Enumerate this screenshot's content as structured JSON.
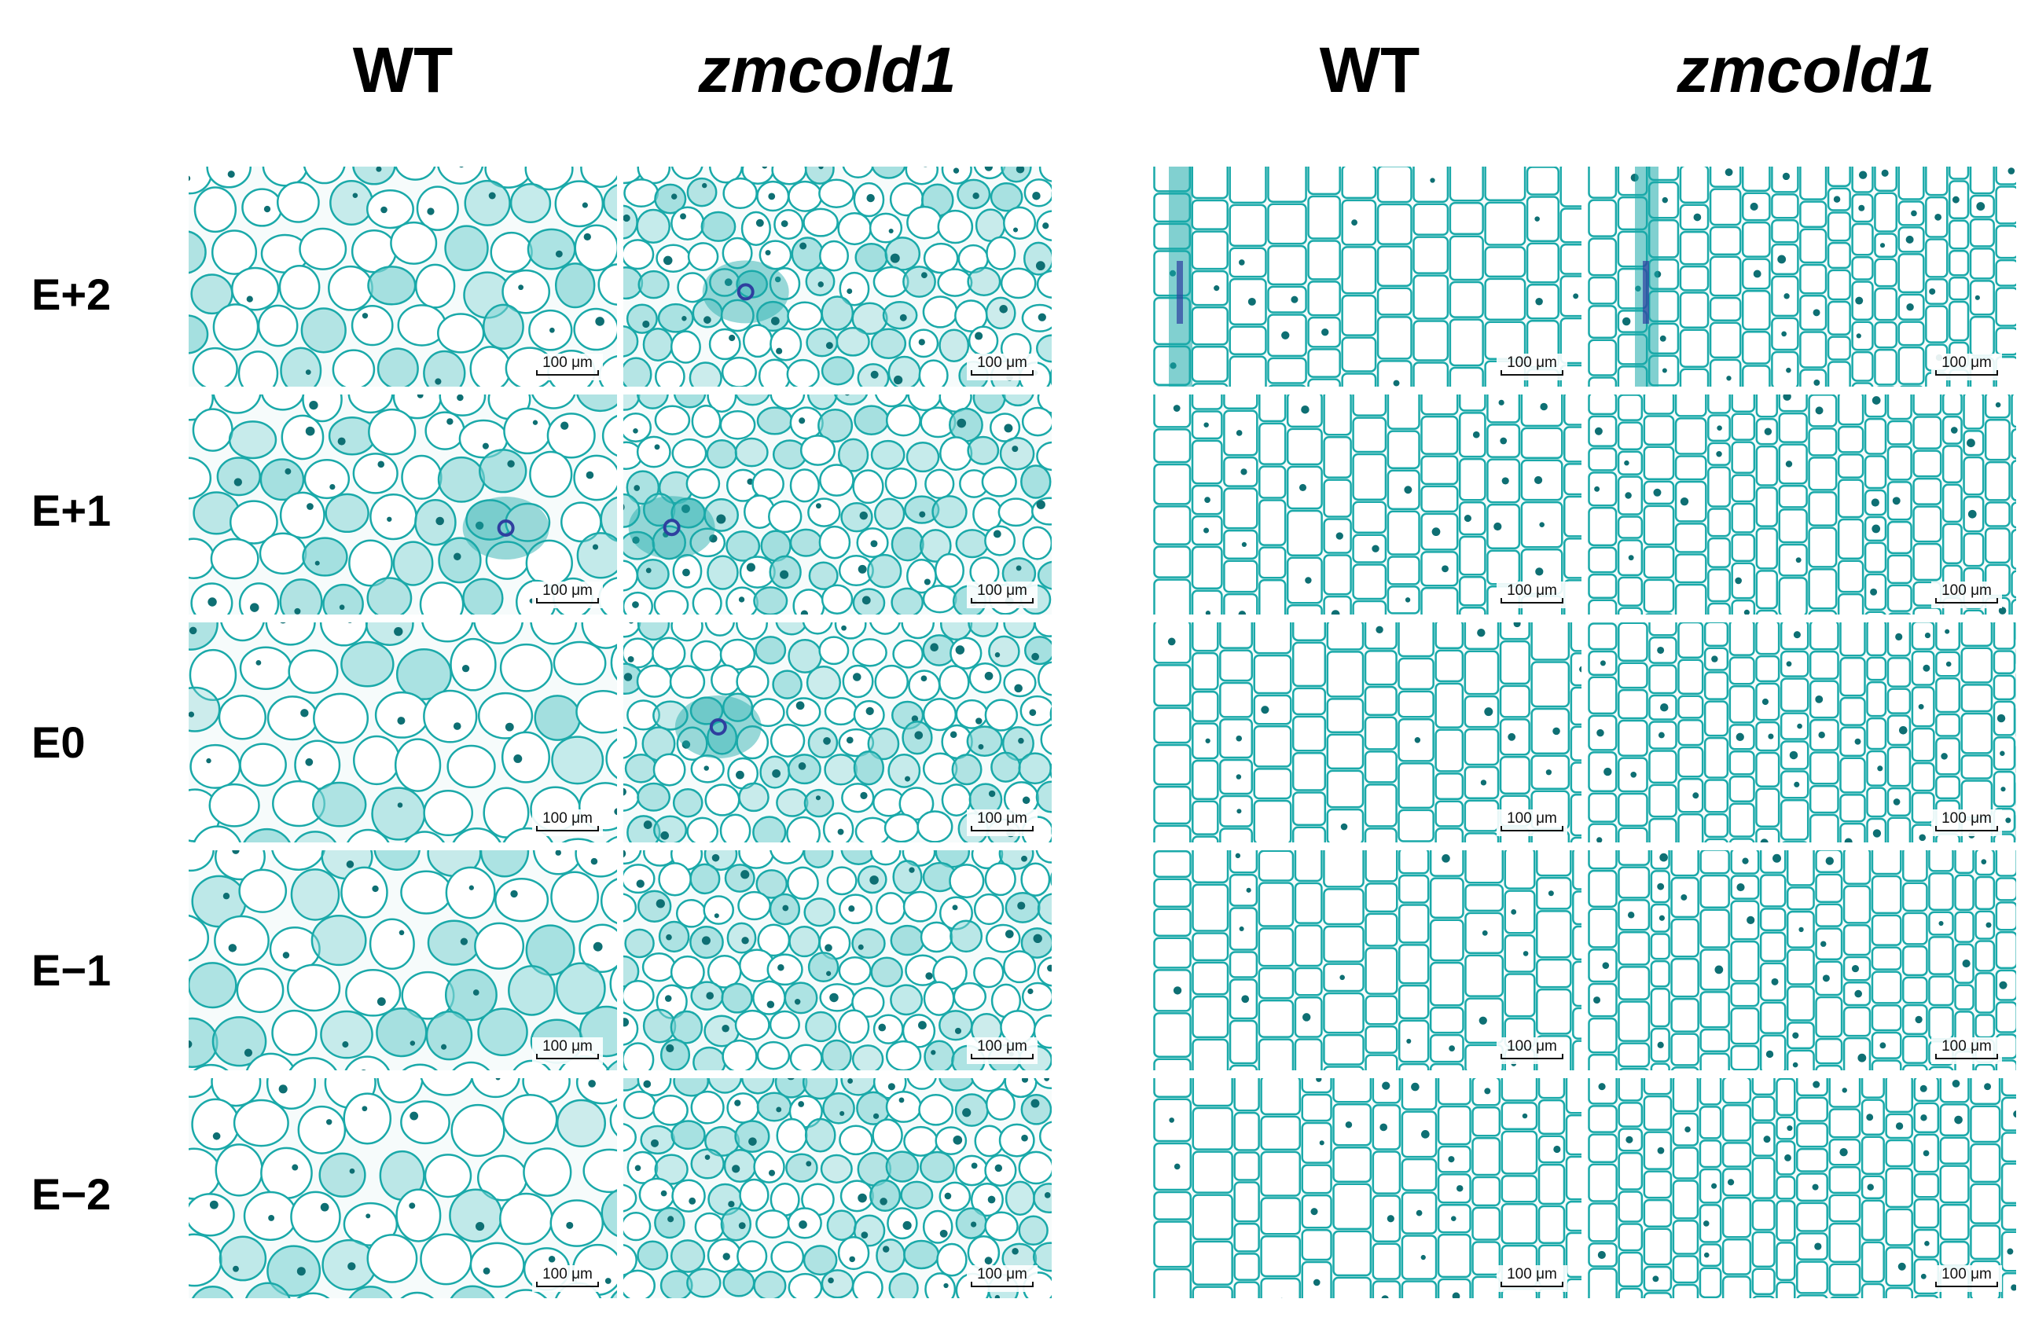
{
  "headers": [
    "WT",
    "zmcold1",
    "WT",
    "zmcold1"
  ],
  "rows": [
    "E+2",
    "E+1",
    "E0",
    "E−1",
    "E−2"
  ],
  "scale_bar_label": "100 μm",
  "colors": {
    "cell_wall": "#1aa9a9",
    "cytoplasm": "#7fd3d3",
    "nucleus": "#0e6f73",
    "vascular": "#2f3f9f",
    "background": "#ffffff"
  }
}
